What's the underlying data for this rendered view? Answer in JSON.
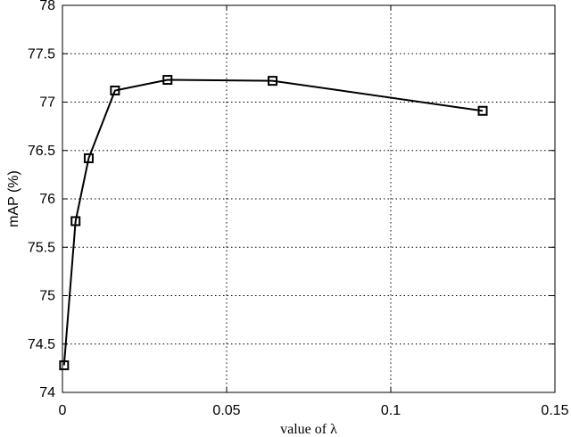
{
  "chart_data": {
    "type": "line",
    "title": "",
    "xlabel": "value of λ",
    "ylabel": "mAP (%)",
    "xlim": [
      0,
      0.15
    ],
    "ylim": [
      74,
      78
    ],
    "xticks": [
      0,
      0.05,
      0.1,
      0.15
    ],
    "xtick_labels": [
      "0",
      "0.05",
      "0.1",
      "0.15"
    ],
    "yticks": [
      74,
      74.5,
      75,
      75.5,
      76,
      76.5,
      77,
      77.5,
      78
    ],
    "ytick_labels": [
      "74",
      "74.5",
      "75",
      "75.5",
      "76",
      "76.5",
      "77",
      "77.5",
      "78"
    ],
    "grid": true,
    "series": [
      {
        "x": [
          0.0005,
          0.004,
          0.008,
          0.016,
          0.032,
          0.064,
          0.128
        ],
        "y": [
          74.28,
          75.77,
          76.42,
          77.12,
          77.23,
          77.22,
          76.91
        ],
        "marker": "square",
        "color": "#000000"
      }
    ]
  }
}
